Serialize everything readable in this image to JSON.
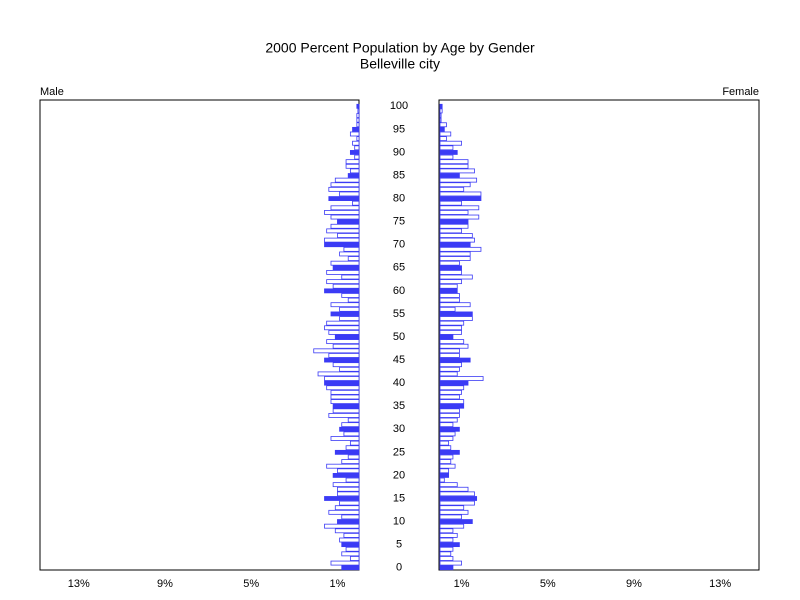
{
  "chart_data": {
    "type": "pyramid",
    "title": "2000 Percent Population by Age by Gender",
    "subtitle": "Belleville city",
    "categories": [
      "0",
      null,
      null,
      null,
      null,
      "5",
      null,
      null,
      null,
      null,
      "10",
      null,
      null,
      null,
      null,
      "15",
      null,
      null,
      null,
      null,
      "20",
      null,
      null,
      null,
      null,
      "25",
      null,
      null,
      null,
      null,
      "30",
      null,
      null,
      null,
      null,
      "35",
      null,
      null,
      null,
      null,
      "40",
      null,
      null,
      null,
      null,
      "45",
      null,
      null,
      null,
      null,
      "50",
      null,
      null,
      null,
      null,
      "55",
      null,
      null,
      null,
      null,
      "60",
      null,
      null,
      null,
      null,
      "65",
      null,
      null,
      null,
      null,
      "70",
      null,
      null,
      null,
      null,
      "75",
      null,
      null,
      null,
      null,
      "80",
      null,
      null,
      null,
      null,
      "85",
      null,
      null,
      null,
      null,
      "90",
      null,
      null,
      null,
      null,
      "95",
      null,
      null,
      null,
      null,
      "100"
    ],
    "xlim": [
      0,
      14.8
    ],
    "xticks": [
      {
        "value": 1,
        "label": "1%"
      },
      {
        "value": 5,
        "label": "5%"
      },
      {
        "value": 9,
        "label": "9%"
      },
      {
        "value": 13,
        "label": "13%"
      }
    ],
    "color": "#ffffff",
    "highlight_color": "#3b3bf5",
    "series": [
      {
        "name": "Male",
        "values": [
          0.8,
          1.3,
          0.4,
          0.8,
          0.6,
          0.8,
          0.9,
          0.7,
          1.1,
          1.6,
          1.0,
          0.8,
          1.4,
          1.1,
          0.9,
          1.6,
          1.0,
          1.0,
          1.2,
          0.6,
          1.2,
          1.0,
          1.5,
          0.8,
          0.5,
          1.1,
          0.6,
          0.4,
          1.3,
          0.7,
          0.9,
          0.8,
          0.5,
          1.4,
          1.2,
          1.2,
          1.3,
          1.3,
          1.3,
          1.5,
          1.6,
          1.6,
          1.9,
          0.9,
          1.2,
          1.6,
          1.4,
          2.1,
          1.2,
          1.5,
          1.1,
          1.4,
          1.6,
          1.5,
          0.9,
          1.3,
          0.9,
          1.3,
          0.5,
          0.8,
          1.6,
          1.2,
          1.5,
          0.8,
          1.5,
          1.2,
          1.3,
          0.5,
          0.9,
          0.7,
          1.6,
          1.6,
          1.0,
          1.5,
          1.3,
          1.0,
          1.3,
          1.6,
          1.3,
          0.3,
          1.4,
          0.9,
          1.4,
          1.3,
          1.1,
          0.5,
          0.4,
          0.6,
          0.6,
          0.2,
          0.4,
          0.2,
          0.3,
          0.1,
          0.4,
          0.3,
          0.1,
          0.1,
          0.1,
          0.05,
          0.1
        ]
      },
      {
        "name": "Female",
        "values": [
          0.6,
          1.0,
          0.6,
          0.5,
          0.6,
          0.9,
          0.6,
          0.8,
          0.6,
          1.1,
          1.5,
          1.0,
          1.3,
          1.1,
          1.6,
          1.7,
          1.6,
          1.3,
          0.8,
          0.2,
          0.4,
          0.4,
          0.7,
          0.5,
          0.6,
          0.9,
          0.5,
          0.4,
          0.6,
          0.7,
          0.9,
          0.6,
          0.8,
          0.9,
          0.9,
          1.1,
          1.1,
          0.9,
          1.0,
          1.1,
          1.3,
          2.0,
          0.8,
          0.9,
          1.0,
          1.4,
          0.9,
          0.9,
          1.3,
          1.1,
          0.6,
          1.0,
          1.0,
          1.1,
          1.5,
          1.5,
          0.7,
          1.4,
          0.9,
          0.9,
          0.8,
          0.8,
          1.0,
          1.5,
          1.0,
          1.0,
          0.9,
          1.4,
          1.4,
          1.9,
          1.4,
          1.6,
          1.5,
          1.0,
          1.3,
          1.3,
          1.8,
          1.3,
          1.8,
          1.0,
          1.9,
          1.9,
          1.1,
          1.4,
          1.7,
          0.9,
          1.6,
          1.3,
          1.3,
          0.6,
          0.8,
          0.6,
          1.0,
          0.3,
          0.5,
          0.2,
          0.3,
          0.05,
          0.05,
          0.1,
          0.1
        ]
      }
    ]
  }
}
